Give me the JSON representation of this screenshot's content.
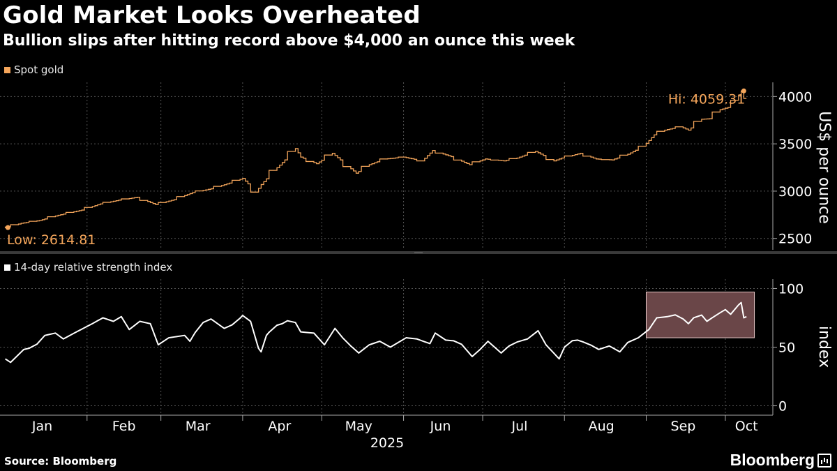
{
  "header": {
    "title": "Gold Market Looks Overheated",
    "subtitle": "Bullion slips after hitting record above $4,000 an ounce this week"
  },
  "colors": {
    "gold": "#f5a65b",
    "rsi": "#ffffff",
    "grid": "#555555",
    "highlight_fill": "#6a4648",
    "highlight_stroke": "#e8c8c8"
  },
  "footer": {
    "source": "Source: Bloomberg",
    "brand": "Bloomberg"
  },
  "chart_data": [
    {
      "type": "line",
      "legend": "Spot gold",
      "ylabel": "US$ per ounce",
      "ylim": [
        2380,
        4150
      ],
      "yticks": [
        2500,
        3000,
        3500,
        4000
      ],
      "annotations": {
        "high": "Hi: 4059.31",
        "low": "Low: 2614.81"
      },
      "x_start": "2025-01-01",
      "x_end": "2025-10-09",
      "anchors": [
        [
          "2025-01-01",
          2625
        ],
        [
          "2025-01-02",
          2614.81
        ],
        [
          "2025-01-08",
          2660
        ],
        [
          "2025-01-15",
          2690
        ],
        [
          "2025-01-22",
          2745
        ],
        [
          "2025-01-31",
          2800
        ],
        [
          "2025-02-07",
          2865
        ],
        [
          "2025-02-14",
          2905
        ],
        [
          "2025-02-21",
          2935
        ],
        [
          "2025-02-28",
          2858
        ],
        [
          "2025-03-07",
          2910
        ],
        [
          "2025-03-14",
          2985
        ],
        [
          "2025-03-21",
          3025
        ],
        [
          "2025-03-28",
          3085
        ],
        [
          "2025-04-02",
          3135
        ],
        [
          "2025-04-07",
          2990
        ],
        [
          "2025-04-09",
          3070
        ],
        [
          "2025-04-14",
          3220
        ],
        [
          "2025-04-18",
          3330
        ],
        [
          "2025-04-22",
          3450
        ],
        [
          "2025-04-24",
          3360
        ],
        [
          "2025-04-30",
          3290
        ],
        [
          "2025-05-06",
          3400
        ],
        [
          "2025-05-09",
          3330
        ],
        [
          "2025-05-15",
          3190
        ],
        [
          "2025-05-20",
          3280
        ],
        [
          "2025-05-26",
          3340
        ],
        [
          "2025-06-02",
          3360
        ],
        [
          "2025-06-09",
          3320
        ],
        [
          "2025-06-13",
          3430
        ],
        [
          "2025-06-20",
          3365
        ],
        [
          "2025-06-27",
          3280
        ],
        [
          "2025-07-03",
          3340
        ],
        [
          "2025-07-10",
          3320
        ],
        [
          "2025-07-15",
          3350
        ],
        [
          "2025-07-22",
          3420
        ],
        [
          "2025-07-29",
          3320
        ],
        [
          "2025-08-01",
          3350
        ],
        [
          "2025-08-08",
          3400
        ],
        [
          "2025-08-14",
          3340
        ],
        [
          "2025-08-20",
          3330
        ],
        [
          "2025-08-26",
          3390
        ],
        [
          "2025-09-01",
          3475
        ],
        [
          "2025-09-05",
          3595
        ],
        [
          "2025-09-09",
          3645
        ],
        [
          "2025-09-15",
          3680
        ],
        [
          "2025-09-18",
          3645
        ],
        [
          "2025-09-23",
          3760
        ],
        [
          "2025-09-26",
          3765
        ],
        [
          "2025-09-30",
          3860
        ],
        [
          "2025-10-03",
          3885
        ],
        [
          "2025-10-06",
          3960
        ],
        [
          "2025-10-08",
          4059.31
        ],
        [
          "2025-10-09",
          3980
        ]
      ]
    },
    {
      "type": "line",
      "legend": "14-day relative strength index",
      "ylabel": "index",
      "ylim": [
        -8,
        108
      ],
      "yticks": [
        0,
        50,
        100
      ],
      "x_start": "2025-01-01",
      "x_end": "2025-10-09",
      "highlight": {
        "x_from": "2025-09-01",
        "x_to": "2025-10-12",
        "y_from": 58,
        "y_to": 97
      },
      "anchors": [
        [
          "2025-01-01",
          40
        ],
        [
          "2025-01-03",
          37
        ],
        [
          "2025-01-08",
          48
        ],
        [
          "2025-01-12",
          50
        ],
        [
          "2025-01-16",
          60
        ],
        [
          "2025-01-20",
          62
        ],
        [
          "2025-01-23",
          57
        ],
        [
          "2025-01-28",
          63
        ],
        [
          "2025-02-03",
          70
        ],
        [
          "2025-02-07",
          75
        ],
        [
          "2025-02-11",
          72
        ],
        [
          "2025-02-14",
          76
        ],
        [
          "2025-02-17",
          65
        ],
        [
          "2025-02-21",
          72
        ],
        [
          "2025-02-25",
          70
        ],
        [
          "2025-02-28",
          52
        ],
        [
          "2025-03-04",
          58
        ],
        [
          "2025-03-10",
          60
        ],
        [
          "2025-03-12",
          55
        ],
        [
          "2025-03-16",
          70
        ],
        [
          "2025-03-20",
          74
        ],
        [
          "2025-03-25",
          66
        ],
        [
          "2025-03-29",
          70
        ],
        [
          "2025-04-01",
          77
        ],
        [
          "2025-04-04",
          72
        ],
        [
          "2025-04-06",
          52
        ],
        [
          "2025-04-08",
          46
        ],
        [
          "2025-04-10",
          60
        ],
        [
          "2025-04-13",
          68
        ],
        [
          "2025-04-16",
          70
        ],
        [
          "2025-04-20",
          75
        ],
        [
          "2025-04-23",
          63
        ],
        [
          "2025-04-28",
          62
        ],
        [
          "2025-05-02",
          52
        ],
        [
          "2025-05-06",
          66
        ],
        [
          "2025-05-10",
          55
        ],
        [
          "2025-05-15",
          45
        ],
        [
          "2025-05-19",
          52
        ],
        [
          "2025-05-23",
          55
        ],
        [
          "2025-05-27",
          50
        ],
        [
          "2025-06-02",
          58
        ],
        [
          "2025-06-06",
          57
        ],
        [
          "2025-06-11",
          53
        ],
        [
          "2025-06-13",
          62
        ],
        [
          "2025-06-17",
          56
        ],
        [
          "2025-06-22",
          55
        ],
        [
          "2025-06-27",
          42
        ],
        [
          "2025-06-30",
          48
        ],
        [
          "2025-07-03",
          55
        ],
        [
          "2025-07-08",
          45
        ],
        [
          "2025-07-12",
          53
        ],
        [
          "2025-07-18",
          57
        ],
        [
          "2025-07-22",
          64
        ],
        [
          "2025-07-25",
          52
        ],
        [
          "2025-07-30",
          40
        ],
        [
          "2025-08-02",
          55
        ],
        [
          "2025-08-06",
          56
        ],
        [
          "2025-08-10",
          53
        ],
        [
          "2025-08-14",
          48
        ],
        [
          "2025-08-18",
          51
        ],
        [
          "2025-08-22",
          46
        ],
        [
          "2025-08-25",
          54
        ],
        [
          "2025-08-29",
          58
        ],
        [
          "2025-09-02",
          65
        ],
        [
          "2025-09-05",
          75
        ],
        [
          "2025-09-09",
          76
        ],
        [
          "2025-09-13",
          78
        ],
        [
          "2025-09-17",
          70
        ],
        [
          "2025-09-21",
          80
        ],
        [
          "2025-09-24",
          72
        ],
        [
          "2025-09-28",
          78
        ],
        [
          "2025-10-01",
          82
        ],
        [
          "2025-10-03",
          78
        ],
        [
          "2025-10-06",
          86
        ],
        [
          "2025-10-07",
          88
        ],
        [
          "2025-10-08",
          75
        ],
        [
          "2025-10-09",
          76
        ]
      ]
    }
  ],
  "x_axis": {
    "months": [
      "Jan",
      "Feb",
      "Mar",
      "Apr",
      "May",
      "Jun",
      "Jul",
      "Aug",
      "Sep",
      "Oct"
    ],
    "year": "2025"
  }
}
